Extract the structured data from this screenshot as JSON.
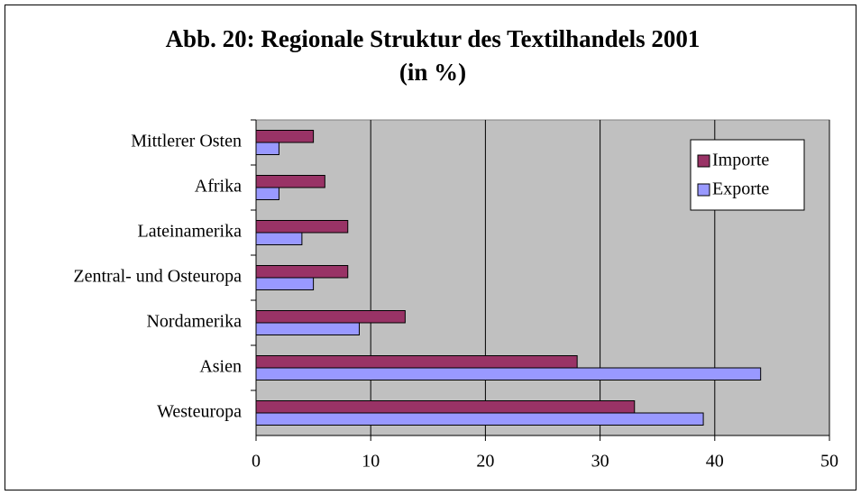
{
  "chart_data": {
    "type": "hbar",
    "title": "Abb. 20: Regionale Struktur des Textilhandels 2001",
    "subtitle": "(in %)",
    "categories": [
      "Mittlerer Osten",
      "Afrika",
      "Lateinamerika",
      "Zentral- und Osteuropa",
      "Nordamerika",
      "Asien",
      "Westeuropa"
    ],
    "series": [
      {
        "name": "Importe",
        "color": "#993366",
        "values": [
          5,
          6,
          8,
          8,
          13,
          28,
          33
        ]
      },
      {
        "name": "Exporte",
        "color": "#9999ff",
        "values": [
          2,
          2,
          4,
          5,
          9,
          44,
          39
        ]
      }
    ],
    "xlim": [
      0,
      50
    ],
    "xticks": [
      0,
      10,
      20,
      30,
      40,
      50
    ],
    "grid": true,
    "legend": "upper right"
  }
}
